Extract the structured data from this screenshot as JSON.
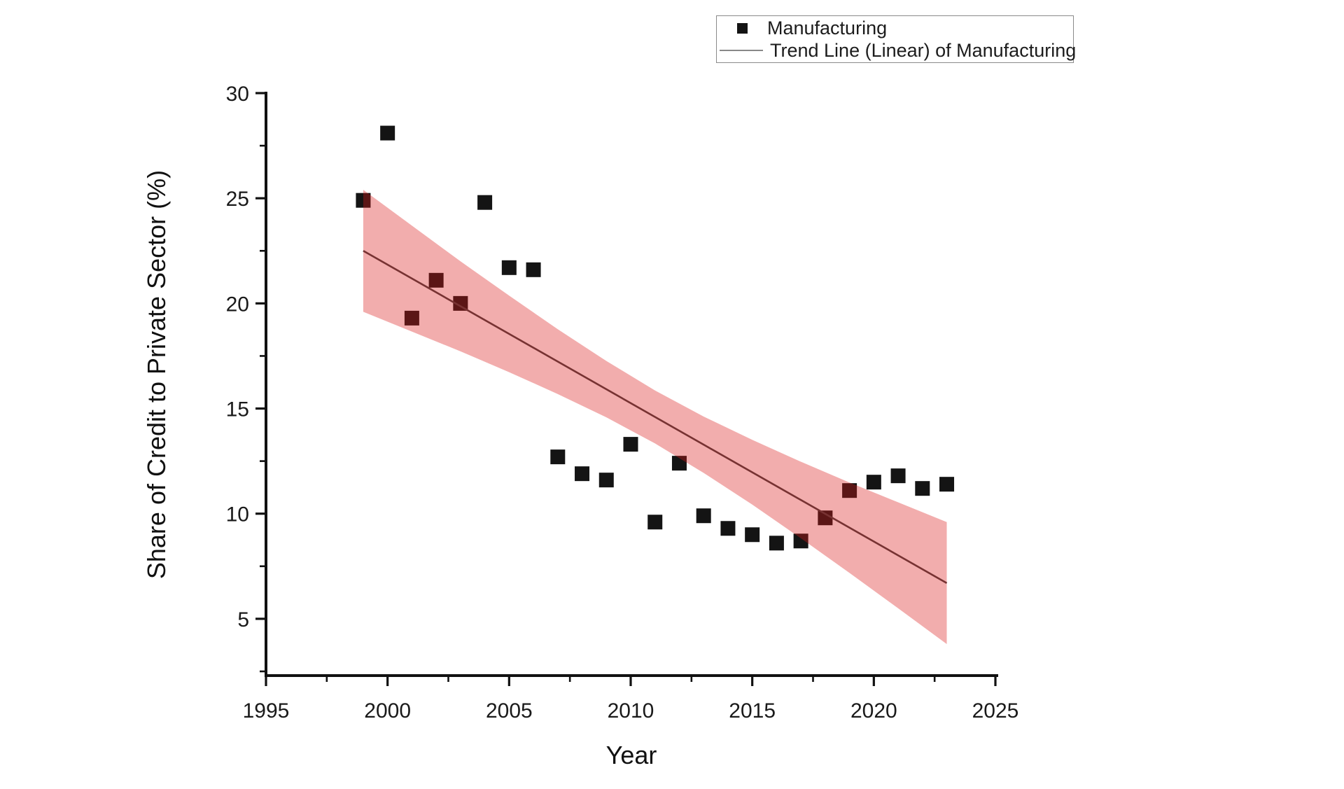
{
  "chart_data": {
    "type": "scatter",
    "title": "",
    "xlabel": "Year",
    "ylabel": "Share of Credit to Private Sector (%)",
    "xlim": [
      1995,
      2025
    ],
    "ylim": [
      2.3,
      30
    ],
    "x_major_ticks": [
      1995,
      2000,
      2005,
      2010,
      2015,
      2020,
      2025
    ],
    "y_major_ticks": [
      5,
      10,
      15,
      20,
      25,
      30
    ],
    "x_minor_ticks": [
      1997.5,
      2002.5,
      2007.5,
      2012.5,
      2017.5,
      2022.5
    ],
    "y_minor_ticks": [
      2.5,
      7.5,
      12.5,
      17.5,
      22.5,
      27.5
    ],
    "grid": "off",
    "legend_position": "top-right",
    "series": [
      {
        "name": "Manufacturing",
        "marker": "square",
        "color": "#141414",
        "x": [
          1999,
          2000,
          2001,
          2002,
          2003,
          2004,
          2005,
          2006,
          2007,
          2008,
          2009,
          2010,
          2011,
          2012,
          2013,
          2014,
          2015,
          2016,
          2017,
          2018,
          2019,
          2020,
          2021,
          2022,
          2023
        ],
        "y": [
          24.9,
          28.1,
          19.3,
          21.1,
          20.0,
          24.8,
          21.7,
          21.6,
          12.7,
          11.9,
          11.6,
          13.3,
          9.6,
          12.4,
          9.9,
          9.3,
          9.0,
          8.6,
          8.7,
          9.8,
          11.1,
          11.5,
          11.8,
          11.2,
          11.4
        ]
      }
    ],
    "trend_line": {
      "name": "Trend Line (Linear) of Manufacturing",
      "color": "#3f3f3f",
      "x": [
        1999,
        2023
      ],
      "y": [
        22.5,
        6.7
      ]
    },
    "confidence_band": {
      "color": "#dc1d1d",
      "opacity": 0.36,
      "x": [
        1999,
        2001,
        2003,
        2005,
        2007,
        2009,
        2011,
        2013,
        2015,
        2017,
        2019,
        2021,
        2023
      ],
      "upper": [
        25.4,
        23.7,
        22.0,
        20.37,
        18.77,
        17.26,
        15.86,
        14.62,
        13.51,
        12.47,
        11.48,
        10.54,
        9.6
      ],
      "lower": [
        19.6,
        18.66,
        17.72,
        16.73,
        15.69,
        14.58,
        13.34,
        11.94,
        10.43,
        8.83,
        7.18,
        5.5,
        3.8
      ]
    },
    "legend": {
      "entries": [
        {
          "label": "Manufacturing",
          "swatch": "square-marker"
        },
        {
          "label": "Trend Line (Linear) of Manufacturing",
          "swatch": "line"
        }
      ]
    },
    "colors": {
      "axis": "#111111",
      "tick_label": "#1a1a1a",
      "band_pink_on_white": "#e9b0b0"
    }
  }
}
